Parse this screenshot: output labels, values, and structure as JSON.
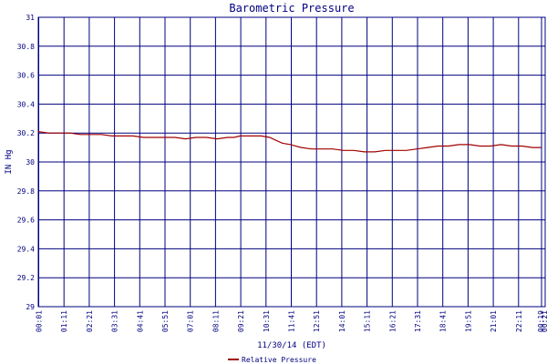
{
  "chart_data": {
    "type": "line",
    "title": "Barometric Pressure",
    "xlabel": "11/30/14 (EDT)",
    "ylabel": "IN Hg",
    "ylim": [
      29,
      31
    ],
    "yticks": [
      "29",
      "29.2",
      "29.4",
      "29.6",
      "29.8",
      "30",
      "30.2",
      "30.4",
      "30.6",
      "30.8",
      "31"
    ],
    "xticks": [
      "00:01",
      "01:11",
      "02:21",
      "03:31",
      "04:41",
      "05:51",
      "07:01",
      "08:11",
      "09:21",
      "10:31",
      "11:41",
      "12:51",
      "14:01",
      "15:11",
      "16:21",
      "17:31",
      "18:41",
      "19:51",
      "21:01",
      "22:11",
      "00:19",
      "00:21"
    ],
    "grid": true,
    "legend": "bottom",
    "colors": {
      "series": "#a00000",
      "grid": "#000080",
      "axis": "#000080"
    },
    "series": [
      {
        "name": "Relative Pressure",
        "x": [
          0,
          0.5,
          1,
          1.5,
          2,
          2.5,
          3,
          3.5,
          4,
          4.5,
          5,
          5.5,
          6,
          6.5,
          7,
          7.5,
          8,
          8.5,
          9,
          9.3,
          9.6,
          10,
          10.3,
          10.6,
          11,
          11.3,
          11.6,
          12,
          12.5,
          13,
          13.5,
          14,
          14.5,
          15,
          15.5,
          16,
          16.5,
          17,
          17.5,
          18,
          18.5,
          19,
          19.5,
          20,
          20.5,
          21,
          21.5,
          22,
          22.5,
          23,
          23.5,
          23.9
        ],
        "values": [
          30.21,
          30.2,
          30.2,
          30.2,
          30.19,
          30.19,
          30.19,
          30.18,
          30.18,
          30.18,
          30.17,
          30.17,
          30.17,
          30.17,
          30.16,
          30.17,
          30.17,
          30.16,
          30.17,
          30.17,
          30.18,
          30.18,
          30.18,
          30.18,
          30.17,
          30.15,
          30.13,
          30.12,
          30.1,
          30.09,
          30.09,
          30.09,
          30.08,
          30.08,
          30.07,
          30.07,
          30.08,
          30.08,
          30.08,
          30.09,
          30.1,
          30.11,
          30.11,
          30.12,
          30.12,
          30.11,
          30.11,
          30.12,
          30.11,
          30.11,
          30.1,
          30.1
        ]
      }
    ]
  }
}
